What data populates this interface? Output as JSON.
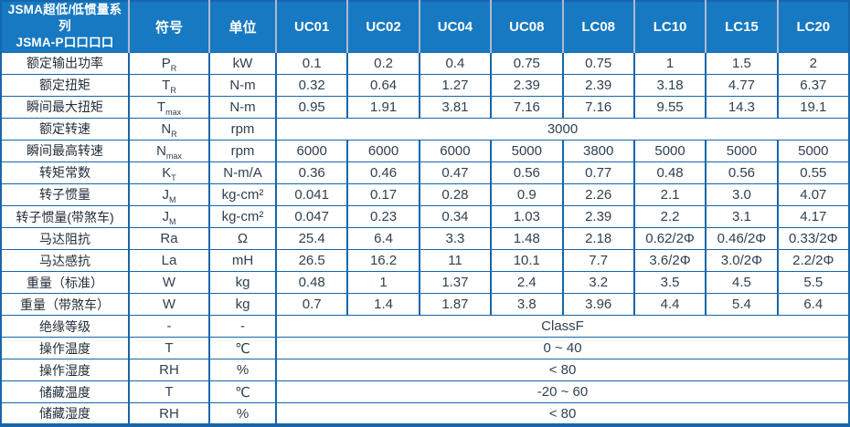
{
  "colors": {
    "header_bg": "#1779c1",
    "header_text": "#ffffff",
    "header_divider": "#aeb8d2",
    "border": "#1566ab",
    "body_text": "#2f4152"
  },
  "table": {
    "title_line1": "JSMA超低/低惯量系列",
    "title_line2": "JSMA-P口口口口",
    "symbol_header": "符号",
    "unit_header": "单位",
    "models": [
      "UC01",
      "UC02",
      "UC04",
      "UC08",
      "LC08",
      "LC10",
      "LC15",
      "LC20"
    ],
    "rows": [
      {
        "label": "额定输出功率",
        "symbol": "P",
        "symbol_sub": "R",
        "unit": "kW",
        "values": [
          "0.1",
          "0.2",
          "0.4",
          "0.75",
          "0.75",
          "1",
          "1.5",
          "2"
        ]
      },
      {
        "label": "额定扭矩",
        "symbol": "T",
        "symbol_sub": "R",
        "unit": "N-m",
        "values": [
          "0.32",
          "0.64",
          "1.27",
          "2.39",
          "2.39",
          "3.18",
          "4.77",
          "6.37"
        ]
      },
      {
        "label": "瞬间最大扭矩",
        "symbol": "T",
        "symbol_sub": "max",
        "unit": "N-m",
        "values": [
          "0.95",
          "1.91",
          "3.81",
          "7.16",
          "7.16",
          "9.55",
          "14.3",
          "19.1"
        ]
      },
      {
        "label": "额定转速",
        "symbol": "N",
        "symbol_sub": "R",
        "unit": "rpm",
        "span_value": "3000"
      },
      {
        "label": "瞬间最高转速",
        "symbol": "N",
        "symbol_sub": "max",
        "unit": "rpm",
        "values": [
          "6000",
          "6000",
          "6000",
          "5000",
          "3800",
          "5000",
          "5000",
          "5000"
        ]
      },
      {
        "label": "转矩常数",
        "symbol": "K",
        "symbol_sub": "T",
        "unit": "N-m/A",
        "values": [
          "0.36",
          "0.46",
          "0.47",
          "0.56",
          "0.77",
          "0.48",
          "0.56",
          "0.55"
        ]
      },
      {
        "label": "转子惯量",
        "symbol": "J",
        "symbol_sub": "M",
        "unit": "kg-cm²",
        "values": [
          "0.041",
          "0.17",
          "0.28",
          "0.9",
          "2.26",
          "2.1",
          "3.0",
          "4.07"
        ]
      },
      {
        "label": "转子惯量(带煞车)",
        "symbol": "J",
        "symbol_sub": "M",
        "unit": "kg-cm²",
        "values": [
          "0.047",
          "0.23",
          "0.34",
          "1.03",
          "2.39",
          "2.2",
          "3.1",
          "4.17"
        ]
      },
      {
        "label": "马达阻抗",
        "symbol": "Ra",
        "symbol_sub": "",
        "unit": "Ω",
        "values": [
          "25.4",
          "6.4",
          "3.3",
          "1.48",
          "2.18",
          "0.62/2Φ",
          "0.46/2Φ",
          "0.33/2Φ"
        ]
      },
      {
        "label": "马达感抗",
        "symbol": "La",
        "symbol_sub": "",
        "unit": "mH",
        "values": [
          "26.5",
          "16.2",
          "11",
          "10.1",
          "7.7",
          "3.6/2Φ",
          "3.0/2Φ",
          "2.2/2Φ"
        ]
      },
      {
        "label": "重量（标准）",
        "symbol": "W",
        "symbol_sub": "",
        "unit": "kg",
        "values": [
          "0.48",
          "1",
          "1.37",
          "2.4",
          "3.2",
          "3.5",
          "4.5",
          "5.5"
        ]
      },
      {
        "label": "重量（带煞车）",
        "symbol": "W",
        "symbol_sub": "",
        "unit": "kg",
        "values": [
          "0.7",
          "1.4",
          "1.87",
          "3.8",
          "3.96",
          "4.4",
          "5.4",
          "6.4"
        ]
      },
      {
        "label": "绝缘等级",
        "symbol": "-",
        "symbol_sub": "",
        "unit": "-",
        "span_value": "ClassF"
      },
      {
        "label": "操作温度",
        "symbol": "T",
        "symbol_sub": "",
        "unit": "℃",
        "span_value": "0 ~ 40"
      },
      {
        "label": "操作湿度",
        "symbol": "RH",
        "symbol_sub": "",
        "unit": "%",
        "span_value": "< 80"
      },
      {
        "label": "储藏温度",
        "symbol": "T",
        "symbol_sub": "",
        "unit": "℃",
        "span_value": "-20 ~ 60"
      },
      {
        "label": "储藏湿度",
        "symbol": "RH",
        "symbol_sub": "",
        "unit": "%",
        "span_value": "< 80"
      }
    ]
  }
}
